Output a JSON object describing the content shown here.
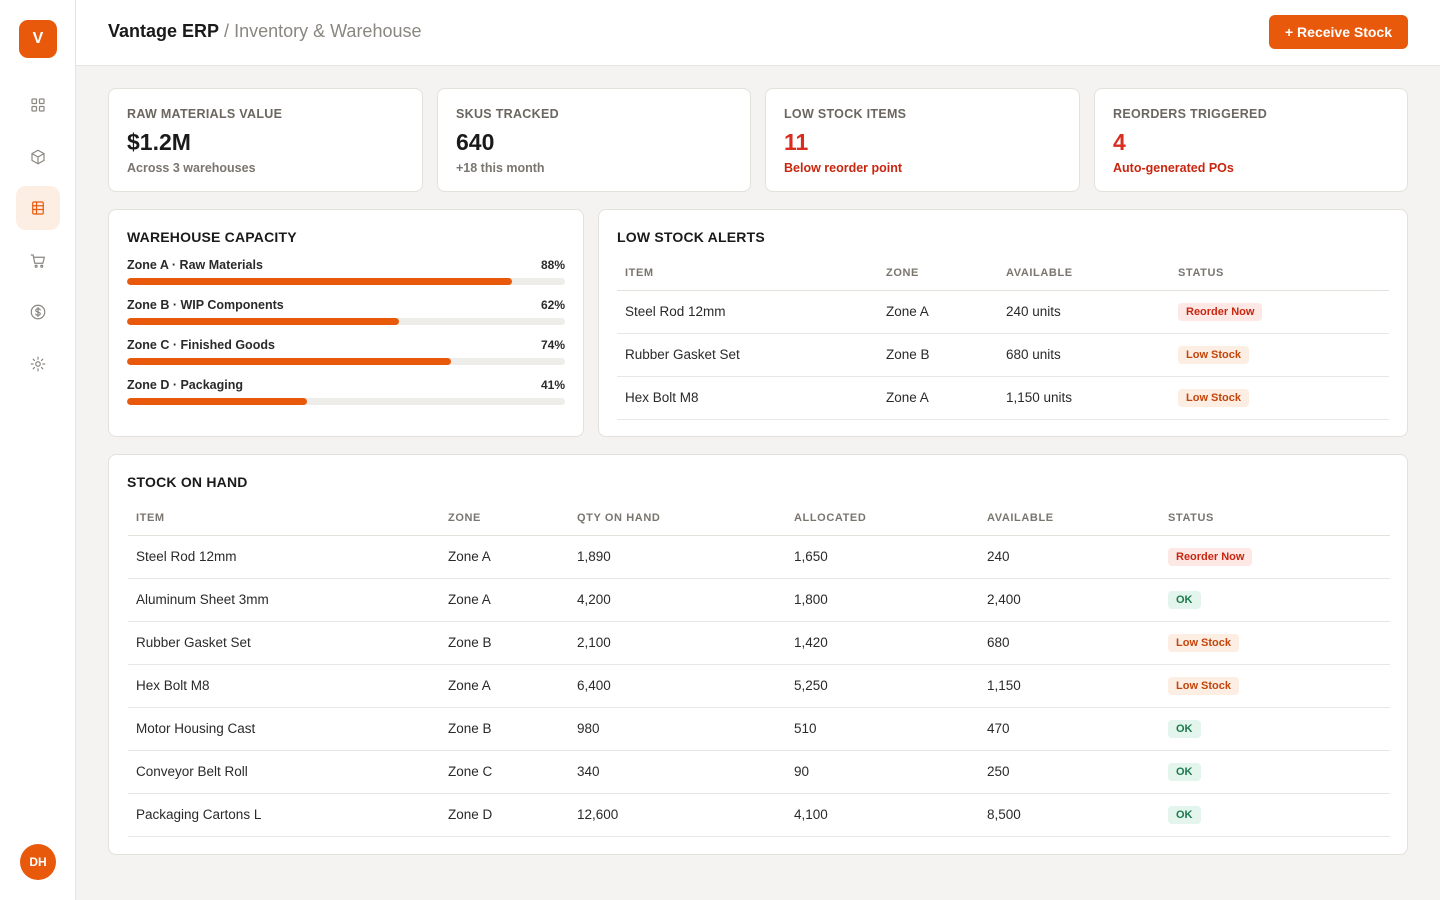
{
  "brand": {
    "logo_letter": "V",
    "accent": "#e8590c"
  },
  "header": {
    "app_name": "Vantage ERP",
    "separator": " / ",
    "page_title": "Inventory & Warehouse",
    "primary_action": "+ Receive Stock"
  },
  "sidebar": {
    "items": [
      {
        "icon": "grid-icon",
        "active": false
      },
      {
        "icon": "box-icon",
        "active": false
      },
      {
        "icon": "inventory-icon",
        "active": true
      },
      {
        "icon": "cart-icon",
        "active": false
      },
      {
        "icon": "dollar-icon",
        "active": false
      },
      {
        "icon": "gear-icon",
        "active": false
      }
    ],
    "user_initials": "DH"
  },
  "kpis": [
    {
      "label": "RAW MATERIALS VALUE",
      "value": "$1.2M",
      "sub": "Across 3 warehouses",
      "alert": false
    },
    {
      "label": "SKUS TRACKED",
      "value": "640",
      "sub": "+18 this month",
      "alert": false
    },
    {
      "label": "LOW STOCK ITEMS",
      "value": "11",
      "sub": "Below reorder point",
      "alert": true
    },
    {
      "label": "REORDERS TRIGGERED",
      "value": "4",
      "sub": "Auto-generated POs",
      "alert": true
    }
  ],
  "capacity": {
    "title": "WAREHOUSE CAPACITY",
    "zones": [
      {
        "name": "Zone A · Raw Materials",
        "pct_label": "88%",
        "value": 88
      },
      {
        "name": "Zone B · WIP Components",
        "pct_label": "62%",
        "value": 62
      },
      {
        "name": "Zone C · Finished Goods",
        "pct_label": "74%",
        "value": 74
      },
      {
        "name": "Zone D · Packaging",
        "pct_label": "41%",
        "value": 41
      }
    ]
  },
  "alerts": {
    "title": "LOW STOCK ALERTS",
    "columns": [
      "ITEM",
      "ZONE",
      "AVAILABLE",
      "STATUS"
    ],
    "rows": [
      {
        "item": "Steel Rod 12mm",
        "zone": "Zone A",
        "available": "240 units",
        "status": "Reorder Now",
        "tone": "red"
      },
      {
        "item": "Rubber Gasket Set",
        "zone": "Zone B",
        "available": "680 units",
        "status": "Low Stock",
        "tone": "orange"
      },
      {
        "item": "Hex Bolt M8",
        "zone": "Zone A",
        "available": "1,150 units",
        "status": "Low Stock",
        "tone": "orange"
      }
    ]
  },
  "stock": {
    "title": "STOCK ON HAND",
    "columns": [
      "ITEM",
      "ZONE",
      "QTY ON HAND",
      "ALLOCATED",
      "AVAILABLE",
      "STATUS"
    ],
    "rows": [
      {
        "item": "Steel Rod 12mm",
        "zone": "Zone A",
        "qty": "1,890",
        "allocated": "1,650",
        "available": "240",
        "status": "Reorder Now",
        "tone": "red"
      },
      {
        "item": "Aluminum Sheet 3mm",
        "zone": "Zone A",
        "qty": "4,200",
        "allocated": "1,800",
        "available": "2,400",
        "status": "OK",
        "tone": "green"
      },
      {
        "item": "Rubber Gasket Set",
        "zone": "Zone B",
        "qty": "2,100",
        "allocated": "1,420",
        "available": "680",
        "status": "Low Stock",
        "tone": "orange"
      },
      {
        "item": "Hex Bolt M8",
        "zone": "Zone A",
        "qty": "6,400",
        "allocated": "5,250",
        "available": "1,150",
        "status": "Low Stock",
        "tone": "orange"
      },
      {
        "item": "Motor Housing Cast",
        "zone": "Zone B",
        "qty": "980",
        "allocated": "510",
        "available": "470",
        "status": "OK",
        "tone": "green"
      },
      {
        "item": "Conveyor Belt Roll",
        "zone": "Zone C",
        "qty": "340",
        "allocated": "90",
        "available": "250",
        "status": "OK",
        "tone": "green"
      },
      {
        "item": "Packaging Cartons L",
        "zone": "Zone D",
        "qty": "12,600",
        "allocated": "4,100",
        "available": "8,500",
        "status": "OK",
        "tone": "green"
      }
    ]
  }
}
